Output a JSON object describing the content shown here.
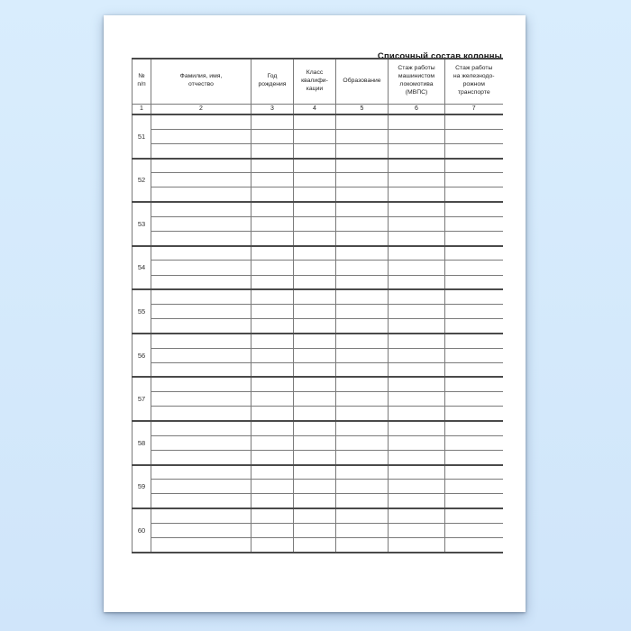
{
  "document": {
    "title": "Списочный состав колонны"
  },
  "table": {
    "columns": [
      {
        "label": "№\nп/п",
        "code": "1"
      },
      {
        "label": "Фамилия, имя,\nотчество",
        "code": "2"
      },
      {
        "label": "Год\nрождения",
        "code": "3"
      },
      {
        "label": "Класс\nквалифи-\nкации",
        "code": "4"
      },
      {
        "label": "Образование",
        "code": "5"
      },
      {
        "label": "Стаж работы\nмашинистом\nлокомотива\n(МВПС)",
        "code": "6"
      },
      {
        "label": "Стаж работы\nна железнодо-\nрожном\nтранспорте",
        "code": "7"
      }
    ],
    "row_numbers": [
      "51",
      "52",
      "53",
      "54",
      "55",
      "56",
      "57",
      "58",
      "59",
      "60"
    ],
    "sub_rows_per_entry": 3,
    "entry_cells_empty": true
  },
  "colors": {
    "canvas_bg": "#d6eafc",
    "page_bg": "#ffffff",
    "grid_line": "#7a7a7a",
    "grid_line_strong": "#4a4a4a",
    "text": "#2b2b2b"
  }
}
